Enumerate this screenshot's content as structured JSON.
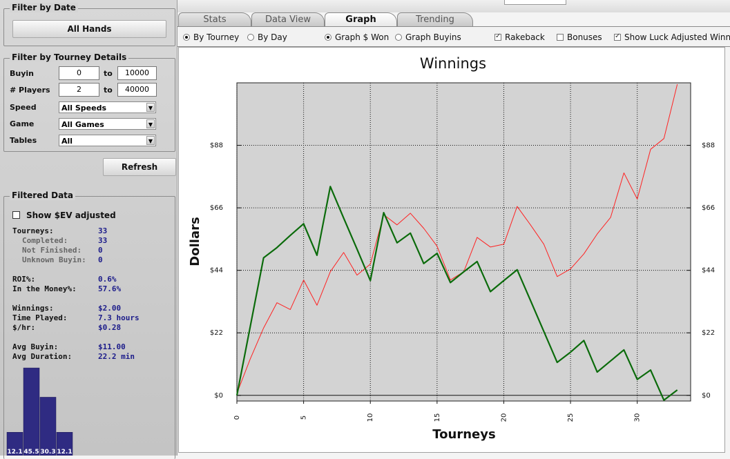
{
  "filter_by_date": {
    "title": "Filter by Date",
    "button": "All Hands"
  },
  "filter_by_tourney": {
    "title": "Filter by Tourney Details",
    "ranges": [
      {
        "label": "Buyin",
        "from": "0",
        "separator": "to",
        "to": "10000"
      },
      {
        "label": "# Players",
        "from": "2",
        "separator": "to",
        "to": "40000"
      }
    ],
    "selects": [
      {
        "label": "Speed",
        "value": "All Speeds"
      },
      {
        "label": "Game",
        "value": "All Games"
      },
      {
        "label": "Tables",
        "value": "All"
      }
    ],
    "button": "Refresh"
  },
  "filtered_data": {
    "title": "Filtered Data",
    "ev_checkbox": {
      "label": "Show $EV adjusted",
      "checked": false
    },
    "groups": [
      [
        {
          "label": "Tourneys:",
          "value": "33",
          "sub": false
        },
        {
          "label": "Completed:",
          "value": "33",
          "sub": true
        },
        {
          "label": "Not Finished:",
          "value": "0",
          "sub": true
        },
        {
          "label": "Unknown Buyin:",
          "value": "0",
          "sub": true
        }
      ],
      [
        {
          "label": "ROI%:",
          "value": "0.6%"
        },
        {
          "label": "In the Money%:",
          "value": "57.6%"
        }
      ],
      [
        {
          "label": "Winnings:",
          "value": "$2.00"
        },
        {
          "label": "Time Played:",
          "value": "7.3 hours"
        },
        {
          "label": "$/hr:",
          "value": "$0.28"
        }
      ],
      [
        {
          "label": "Avg Buyin:",
          "value": "$11.00"
        },
        {
          "label": "Avg Duration:",
          "value": "22.2 min"
        }
      ]
    ]
  },
  "tabs": [
    {
      "label": "Stats",
      "active": false
    },
    {
      "label": "Data View",
      "active": false
    },
    {
      "label": "Graph",
      "active": true
    },
    {
      "label": "Trending",
      "active": false
    }
  ],
  "options": [
    {
      "label": "By Tourney",
      "kind": "radio",
      "checked": true
    },
    {
      "label": "By Day",
      "kind": "radio",
      "checked": false
    },
    {
      "label": "Graph $ Won",
      "kind": "radio",
      "checked": true
    },
    {
      "label": "Graph Buyins",
      "kind": "radio",
      "checked": false
    },
    {
      "label": "Rakeback",
      "kind": "checkbox",
      "checked": true
    },
    {
      "label": "Bonuses",
      "kind": "checkbox",
      "checked": false
    },
    {
      "label": "Show Luck Adjusted Winnings",
      "kind": "checkbox",
      "checked": true
    }
  ],
  "chart_data": [
    {
      "type": "line",
      "title": "Winnings",
      "x_label": "Tourneys",
      "y_label": "Dollars",
      "x": [
        0,
        1,
        2,
        3,
        4,
        5,
        6,
        7,
        8,
        9,
        10,
        11,
        12,
        13,
        14,
        15,
        16,
        17,
        18,
        19,
        20,
        21,
        22,
        23,
        24,
        25,
        26,
        27,
        28,
        29,
        30,
        31,
        32,
        33
      ],
      "series": [
        {
          "color": "#ff2222",
          "line_width": 1,
          "values": [
            0.7,
            12.8,
            23.7,
            32.6,
            30.2,
            40.6,
            31.7,
            43.5,
            50.3,
            42.3,
            46.2,
            63.6,
            60,
            64.1,
            58.8,
            52.5,
            40.6,
            43.5,
            55.6,
            52.2,
            53.2,
            66.5,
            60,
            53.2,
            41.8,
            44.5,
            49.8,
            56.8,
            62.6,
            78.3,
            69.1,
            86.6,
            90.4,
            109.5
          ]
        },
        {
          "color": "#0b6b0b",
          "line_width": 2.2,
          "values": [
            0,
            24.2,
            48.4,
            52,
            56.3,
            60.4,
            49.3,
            73.5,
            62.4,
            51.5,
            40.4,
            64.3,
            53.7,
            57.1,
            46.4,
            50,
            39.7,
            43.5,
            47.1,
            36.5,
            40.4,
            44.2,
            33.4,
            22.5,
            11.6,
            15.2,
            19.3,
            8.2,
            12.1,
            16,
            5.6,
            8.9,
            -1.7,
            1.9
          ]
        }
      ],
      "xlim": [
        0,
        34
      ],
      "ylim": [
        -2,
        110
      ],
      "xticks": [
        0,
        5,
        10,
        15,
        20,
        25,
        30
      ],
      "yticks": [
        {
          "value": 0,
          "label": "$0"
        },
        {
          "value": 22,
          "label": "$22"
        },
        {
          "value": 44,
          "label": "$44"
        },
        {
          "value": 66,
          "label": "$66"
        },
        {
          "value": 88,
          "label": "$88"
        }
      ],
      "grid": true
    },
    {
      "type": "bar",
      "values": [
        12.1,
        45.5,
        30.3,
        12.1
      ],
      "color": "#2f2b82"
    }
  ]
}
